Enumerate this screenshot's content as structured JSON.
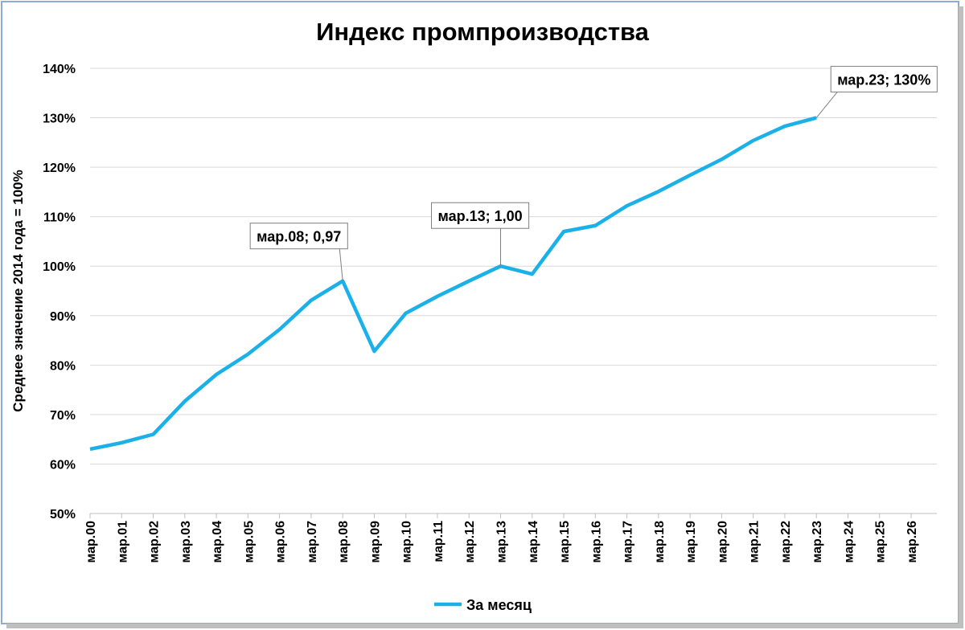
{
  "chart_data": {
    "type": "line",
    "title": "Индекс промпроизводства",
    "y_label": "Среднее значение 2014 года = 100%",
    "categories": [
      "мар.00",
      "мар.01",
      "мар.02",
      "мар.03",
      "мар.04",
      "мар.05",
      "мар.06",
      "мар.07",
      "мар.08",
      "мар.09",
      "мар.10",
      "мар.11",
      "мар.12",
      "мар.13",
      "мар.14",
      "мар.15",
      "мар.16",
      "мар.17",
      "мар.18",
      "мар.19",
      "мар.20",
      "мар.21",
      "мар.22",
      "мар.23",
      "мар.24",
      "мар.25",
      "мар.26"
    ],
    "series": [
      {
        "name": "За месяц",
        "color": "#1ab0e8",
        "values": [
          63,
          64.3,
          66,
          72.7,
          78.1,
          82.2,
          87.2,
          93.1,
          97,
          82.8,
          90.5,
          93.9,
          97,
          100,
          98.4,
          107,
          108.2,
          112.2,
          115.1,
          118.4,
          121.6,
          125.4,
          128.3,
          130,
          null,
          null,
          null
        ],
        "value_labels": [
          null,
          null,
          null,
          null,
          null,
          null,
          null,
          null,
          "мар.08; 0,97",
          null,
          null,
          null,
          null,
          "мар.13; 1,00",
          null,
          null,
          null,
          null,
          null,
          null,
          null,
          null,
          null,
          "мар.23; 130%",
          null,
          null,
          null
        ]
      }
    ],
    "ylim": [
      50,
      140
    ],
    "yticks": [
      {
        "value": 50,
        "label": "50%"
      },
      {
        "value": 60,
        "label": "60%"
      },
      {
        "value": 70,
        "label": "70%"
      },
      {
        "value": 80,
        "label": "80%"
      },
      {
        "value": 90,
        "label": "90%"
      },
      {
        "value": 100,
        "label": "100%"
      },
      {
        "value": 110,
        "label": "110%"
      },
      {
        "value": 120,
        "label": "120%"
      },
      {
        "value": 130,
        "label": "130%"
      },
      {
        "value": 140,
        "label": "140%"
      }
    ],
    "grid": true,
    "legend": "bottom"
  }
}
